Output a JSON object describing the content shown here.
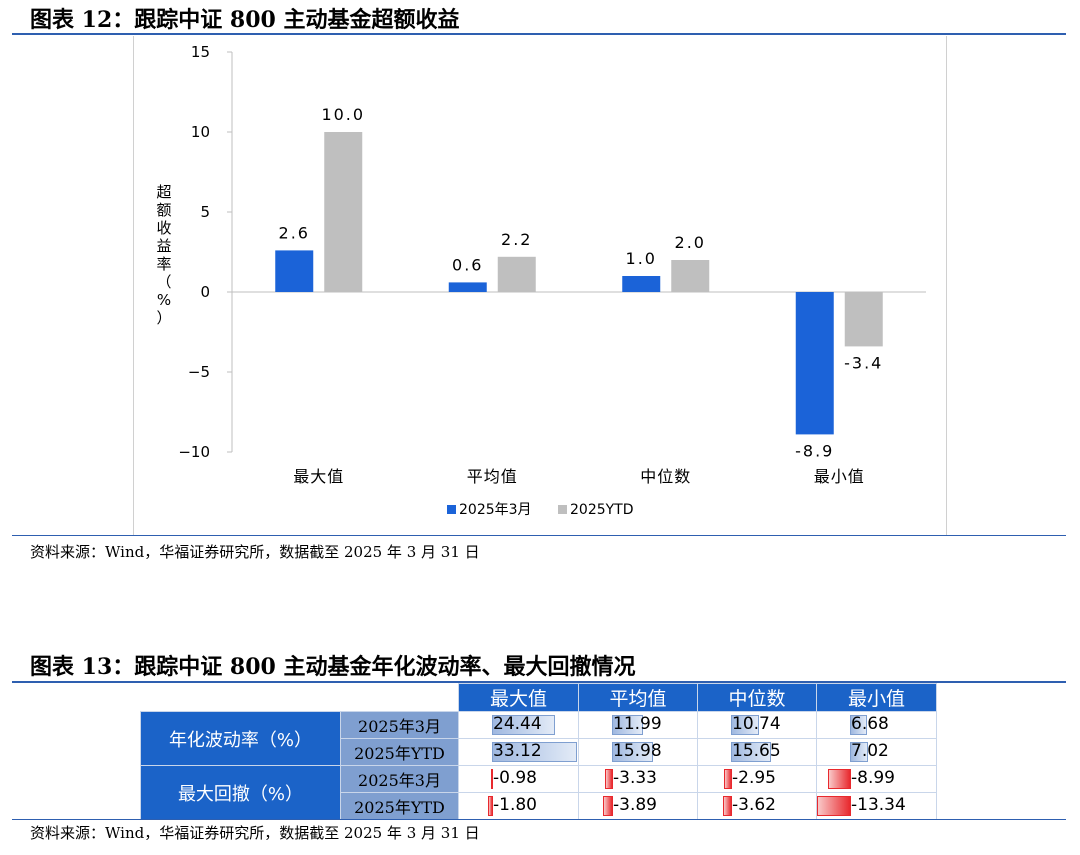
{
  "figure12": {
    "title": "图表 12：跟踪中证 800 主动基金超额收益",
    "source": "资料来源：Wind，华福证券研究所，数据截至 2025 年 3 月 31 日"
  },
  "chart_data": {
    "type": "bar",
    "categories": [
      "最大值",
      "平均值",
      "中位数",
      "最小值"
    ],
    "series": [
      {
        "name": "2025年3月",
        "values": [
          2.6,
          0.6,
          1.0,
          -8.9
        ],
        "labels": [
          "2.6",
          "0.6",
          "1.0",
          "-8.9"
        ]
      },
      {
        "name": "2025YTD",
        "values": [
          10.0,
          2.2,
          2.0,
          -3.4
        ],
        "labels": [
          "10.0",
          "2.2",
          "2.0",
          "-3.4"
        ]
      }
    ],
    "ylabel": "超额收益率（%）",
    "ylim": [
      -10,
      15
    ],
    "yticks": [
      15,
      10,
      5,
      0,
      -5,
      -10
    ],
    "ytick_labels": [
      "15",
      "10",
      "5",
      "0",
      "−5",
      "−10"
    ],
    "legend_position": "bottom",
    "grid": false,
    "colors": {
      "2025年3月": "#1b63d8",
      "2025YTD": "#bfbfbf"
    }
  },
  "figure13": {
    "title": "图表 13：跟踪中证 800 主动基金年化波动率、最大回撤情况",
    "source": "资料来源：Wind，华福证券研究所，数据截至 2025 年 3 月 31 日",
    "columns": [
      "最大值",
      "平均值",
      "中位数",
      "最小值"
    ],
    "groups": [
      {
        "label": "年化波动率（%）",
        "rows": [
          {
            "period": "2025年3月",
            "values": [
              "24.44",
              "11.99",
              "10.74",
              "6.68"
            ],
            "nums": [
              24.44,
              11.99,
              10.74,
              6.68
            ]
          },
          {
            "period": "2025年YTD",
            "values": [
              "33.12",
              "15.98",
              "15.65",
              "7.02"
            ],
            "nums": [
              33.12,
              15.98,
              15.65,
              7.02
            ]
          }
        ]
      },
      {
        "label": "最大回撤（%）",
        "rows": [
          {
            "period": "2025年3月",
            "values": [
              "-0.98",
              "-3.33",
              "-2.95",
              "-8.99"
            ],
            "nums": [
              -0.98,
              -3.33,
              -2.95,
              -8.99
            ]
          },
          {
            "period": "2025年YTD",
            "values": [
              "-1.80",
              "-3.89",
              "-3.62",
              "-13.34"
            ],
            "nums": [
              -1.8,
              -3.89,
              -3.62,
              -13.34
            ]
          }
        ]
      }
    ]
  }
}
